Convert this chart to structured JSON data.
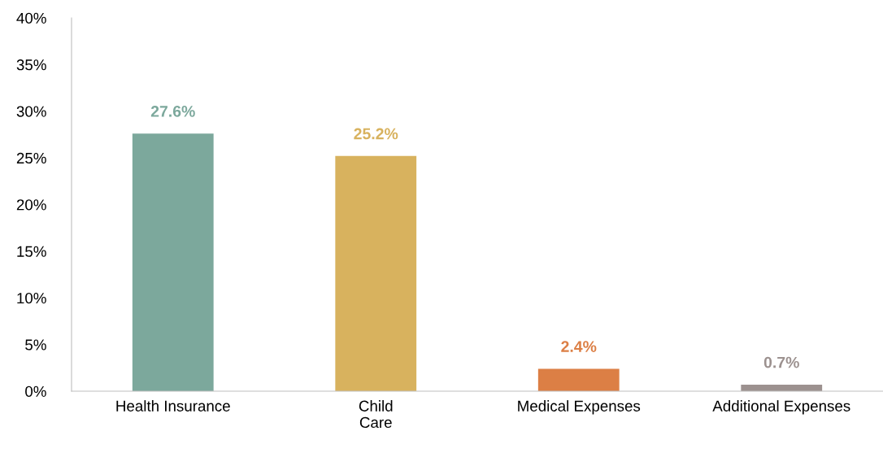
{
  "chart_data": {
    "type": "bar",
    "categories": [
      "Health Insurance",
      "Child\nCare",
      "Medical Expenses",
      "Additional Expenses"
    ],
    "values": [
      27.6,
      25.2,
      2.4,
      0.7
    ],
    "colors": [
      "#7ca89c",
      "#d8b25e",
      "#dc7f45",
      "#9c918f"
    ],
    "value_labels": [
      "27.6%",
      "25.2%",
      "2.4%",
      "0.7%"
    ],
    "ylim": [
      0,
      40
    ],
    "yticks": [
      {
        "value": 0,
        "label": "0%"
      },
      {
        "value": 5,
        "label": "5%"
      },
      {
        "value": 10,
        "label": "10%"
      },
      {
        "value": 15,
        "label": "15%"
      },
      {
        "value": 20,
        "label": "20%"
      },
      {
        "value": 25,
        "label": "25%"
      },
      {
        "value": 30,
        "label": "30%"
      },
      {
        "value": 35,
        "label": "35%"
      },
      {
        "value": 40,
        "label": "40%"
      }
    ],
    "grid": false,
    "legend": false
  }
}
